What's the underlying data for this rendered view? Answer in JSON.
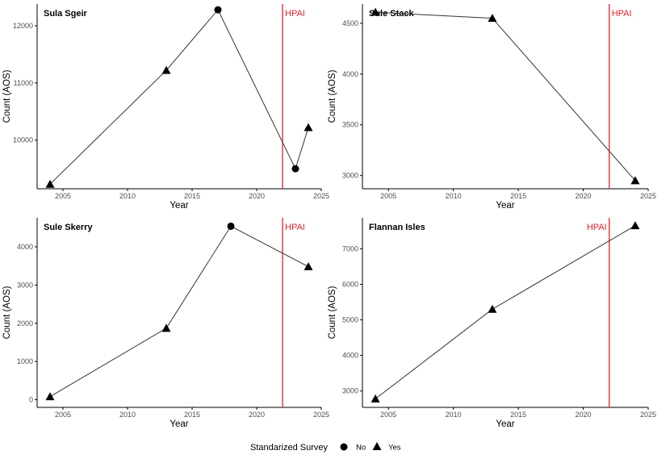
{
  "legend": {
    "title": "Standarized Survey",
    "entries": [
      {
        "label": "No",
        "marker": "circle"
      },
      {
        "label": "Yes",
        "marker": "triangle"
      }
    ]
  },
  "colors": {
    "line": "#333333",
    "marker": "#000000",
    "hpai": "#e8202a",
    "axis": "#000000"
  },
  "chart_data": [
    {
      "type": "line",
      "title": "Sula Sgeir",
      "xlabel": "Year",
      "ylabel": "Count (AOS)",
      "xlim": [
        2003,
        2025
      ],
      "ylim": [
        9150,
        12380
      ],
      "xticks": [
        2005,
        2010,
        2015,
        2020,
        2025
      ],
      "yticks": [
        10000,
        11000,
        12000
      ],
      "vline": {
        "x": 2022,
        "label": "HPAI"
      },
      "points": [
        {
          "x": 2004,
          "y": 9230,
          "standardized": "Yes"
        },
        {
          "x": 2013,
          "y": 11220,
          "standardized": "Yes"
        },
        {
          "x": 2017,
          "y": 12280,
          "standardized": "No"
        },
        {
          "x": 2023,
          "y": 9500,
          "standardized": "No"
        },
        {
          "x": 2024,
          "y": 10220,
          "standardized": "Yes"
        }
      ]
    },
    {
      "type": "line",
      "title": "Sule Stack",
      "xlabel": "Year",
      "ylabel": "Count (AOS)",
      "xlim": [
        2003,
        2025
      ],
      "ylim": [
        2870,
        4690
      ],
      "xticks": [
        2005,
        2010,
        2015,
        2020,
        2025
      ],
      "yticks": [
        3000,
        3500,
        4000,
        4500
      ],
      "vline": {
        "x": 2022,
        "label": "HPAI"
      },
      "points": [
        {
          "x": 2004,
          "y": 4610,
          "standardized": "Yes"
        },
        {
          "x": 2013,
          "y": 4550,
          "standardized": "Yes"
        },
        {
          "x": 2024,
          "y": 2950,
          "standardized": "Yes"
        }
      ]
    },
    {
      "type": "line",
      "title": "Sule Skerry",
      "xlabel": "Year",
      "ylabel": "Count (AOS)",
      "xlim": [
        2003,
        2025
      ],
      "ylim": [
        -200,
        4760
      ],
      "xticks": [
        2005,
        2010,
        2015,
        2020,
        2025
      ],
      "yticks": [
        0,
        1000,
        2000,
        3000,
        4000
      ],
      "vline": {
        "x": 2022,
        "label": "HPAI"
      },
      "points": [
        {
          "x": 2004,
          "y": 80,
          "standardized": "Yes"
        },
        {
          "x": 2013,
          "y": 1870,
          "standardized": "Yes"
        },
        {
          "x": 2018,
          "y": 4540,
          "standardized": "No"
        },
        {
          "x": 2024,
          "y": 3480,
          "standardized": "Yes"
        }
      ]
    },
    {
      "type": "line",
      "title": "Flannan Isles",
      "xlabel": "Year",
      "ylabel": "Count (AOS)",
      "xlim": [
        2003,
        2025
      ],
      "ylim": [
        2540,
        7870
      ],
      "xticks": [
        2005,
        2010,
        2015,
        2020,
        2025
      ],
      "yticks": [
        3000,
        4000,
        5000,
        6000,
        7000
      ],
      "vline": {
        "x": 2022,
        "label": "HPAI"
      },
      "points": [
        {
          "x": 2004,
          "y": 2780,
          "standardized": "Yes"
        },
        {
          "x": 2013,
          "y": 5300,
          "standardized": "Yes"
        },
        {
          "x": 2024,
          "y": 7650,
          "standardized": "Yes"
        }
      ]
    }
  ]
}
